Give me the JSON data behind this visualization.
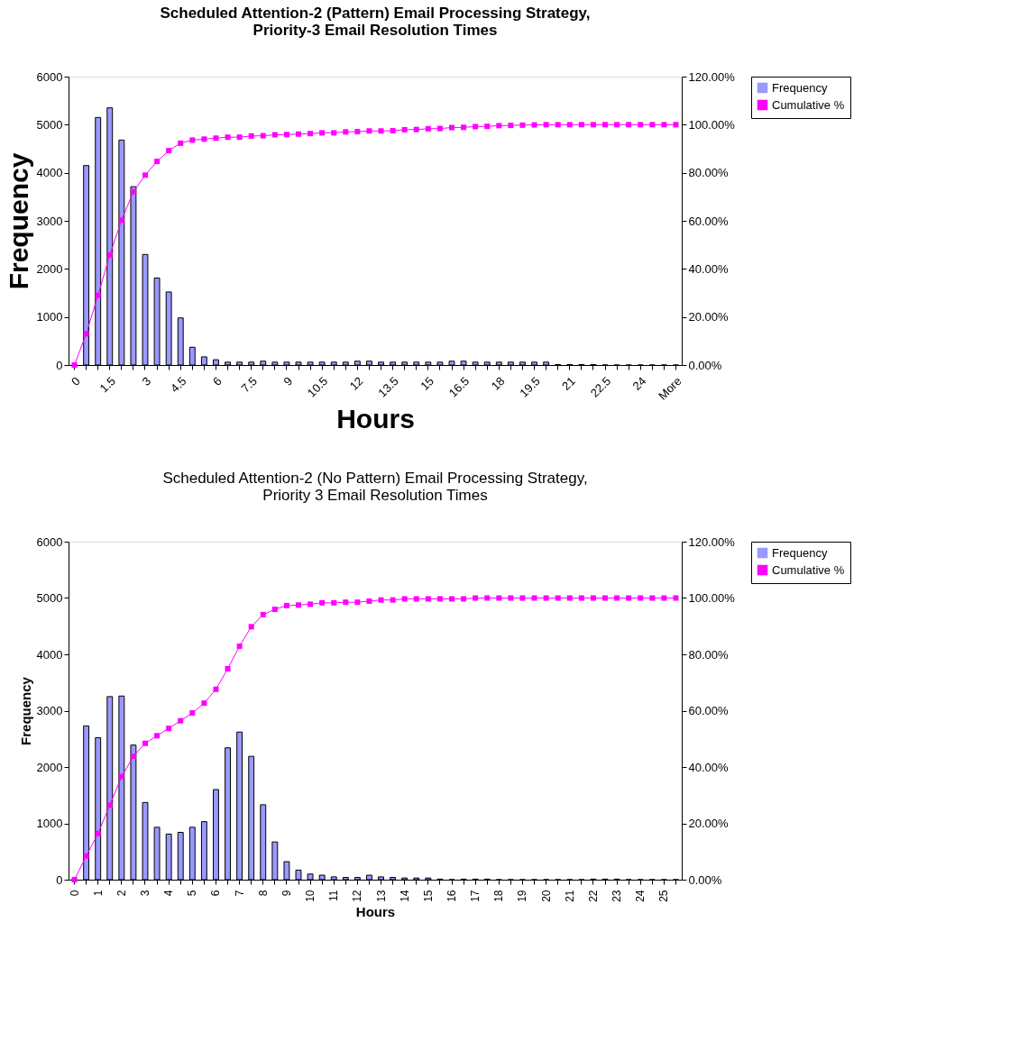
{
  "chart_data": [
    {
      "type": "bar",
      "title": "Scheduled Attention-2 (Pattern) Email Processing Strategy,\nPriority-3 Email Resolution Times",
      "xlabel": "Hours",
      "ylabel": "Frequency",
      "categories": [
        "0",
        null,
        null,
        "1.5",
        null,
        null,
        "3",
        null,
        null,
        "4.5",
        null,
        null,
        "6",
        null,
        null,
        "7.5",
        null,
        null,
        "9",
        null,
        null,
        "10.5",
        null,
        null,
        "12",
        null,
        null,
        "13.5",
        null,
        null,
        "15",
        null,
        null,
        "16.5",
        null,
        null,
        "18",
        null,
        null,
        "19.5",
        null,
        null,
        "21",
        null,
        null,
        "22.5",
        null,
        null,
        "24",
        null,
        null,
        "More"
      ],
      "series": [
        {
          "name": "Frequency",
          "color": "#9999ff",
          "values": [
            0,
            4150,
            5150,
            5350,
            4680,
            3710,
            2300,
            1810,
            1520,
            980,
            370,
            170,
            110,
            60,
            60,
            60,
            80,
            60,
            60,
            60,
            60,
            60,
            60,
            60,
            80,
            80,
            60,
            60,
            60,
            60,
            60,
            60,
            80,
            80,
            60,
            60,
            60,
            60,
            60,
            60,
            60,
            10,
            10,
            10,
            10,
            0,
            0,
            0,
            0,
            0,
            0,
            0
          ]
        },
        {
          "name": "Cumulative %",
          "type": "line",
          "axis": "y2",
          "color": "#ff00ff",
          "values": [
            0,
            13.0,
            29.0,
            45.8,
            60.3,
            72.1,
            79.0,
            84.7,
            89.2,
            92.3,
            93.6,
            94.0,
            94.4,
            94.8,
            94.8,
            95.3,
            95.4,
            95.8,
            95.9,
            96.1,
            96.3,
            96.6,
            96.6,
            97.0,
            97.1,
            97.4,
            97.4,
            97.5,
            97.9,
            98.0,
            98.3,
            98.4,
            98.8,
            98.9,
            99.2,
            99.3,
            99.6,
            99.7,
            99.8,
            99.9,
            100,
            100,
            100,
            100,
            100,
            100,
            100,
            100,
            100,
            100,
            100,
            100
          ]
        }
      ],
      "ylim": [
        0,
        6000
      ],
      "yticks": [
        0,
        1000,
        2000,
        3000,
        4000,
        5000,
        6000
      ],
      "y2lim": [
        0,
        120
      ],
      "y2ticks": [
        {
          "value": 0,
          "label": "0.00%"
        },
        {
          "value": 20,
          "label": "20.00%"
        },
        {
          "value": 40,
          "label": "40.00%"
        },
        {
          "value": 60,
          "label": "60.00%"
        },
        {
          "value": 80,
          "label": "80.00%"
        },
        {
          "value": 100,
          "label": "100.00%"
        },
        {
          "value": 120,
          "label": "120.00%"
        }
      ],
      "legend": "right",
      "marker": "square",
      "line_style": "solid"
    },
    {
      "type": "bar",
      "title": "Scheduled Attention-2 (No Pattern) Email Processing Strategy,\nPriority 3 Email Resolution Times",
      "xlabel": "Hours",
      "ylabel": "Frequency",
      "categories": [
        "0",
        null,
        "1",
        null,
        "2",
        null,
        "3",
        null,
        "4",
        null,
        "5",
        null,
        "6",
        null,
        "7",
        null,
        "8",
        null,
        "9",
        null,
        "10",
        null,
        "11",
        null,
        "12",
        null,
        "13",
        null,
        "14",
        null,
        "15",
        null,
        "16",
        null,
        "17",
        null,
        "18",
        null,
        "19",
        null,
        "20",
        null,
        "21",
        null,
        "22",
        null,
        "23",
        null,
        "24",
        null,
        "25",
        null
      ],
      "series": [
        {
          "name": "Frequency",
          "color": "#9999ff",
          "values": [
            0,
            2730,
            2520,
            3250,
            3260,
            2390,
            1370,
            930,
            810,
            840,
            930,
            1030,
            1600,
            2340,
            2620,
            2190,
            1330,
            670,
            320,
            170,
            100,
            80,
            50,
            40,
            40,
            80,
            50,
            40,
            30,
            30,
            30,
            10,
            0,
            10,
            10,
            10,
            0,
            0,
            0,
            0,
            0,
            0,
            0,
            0,
            10,
            10,
            10,
            0,
            0,
            0,
            0,
            0
          ]
        },
        {
          "name": "Cumulative %",
          "type": "line",
          "axis": "y2",
          "color": "#ff00ff",
          "values": [
            0,
            8.4,
            16.4,
            26.5,
            36.6,
            43.8,
            48.4,
            51.1,
            53.7,
            56.4,
            59.2,
            62.7,
            67.6,
            74.9,
            82.9,
            89.8,
            94.1,
            96.0,
            97.3,
            97.5,
            97.8,
            98.3,
            98.3,
            98.5,
            98.5,
            98.9,
            99.3,
            99.3,
            99.7,
            99.7,
            99.7,
            99.7,
            99.7,
            99.7,
            100,
            100,
            100,
            100,
            100,
            100,
            100,
            100,
            100,
            100,
            100,
            100,
            100,
            100,
            100,
            100,
            100,
            100
          ]
        }
      ],
      "ylim": [
        0,
        6000
      ],
      "yticks": [
        0,
        1000,
        2000,
        3000,
        4000,
        5000,
        6000
      ],
      "y2lim": [
        0,
        120
      ],
      "y2ticks": [
        {
          "value": 0,
          "label": "0.00%"
        },
        {
          "value": 20,
          "label": "20.00%"
        },
        {
          "value": 40,
          "label": "40.00%"
        },
        {
          "value": 60,
          "label": "60.00%"
        },
        {
          "value": 80,
          "label": "80.00%"
        },
        {
          "value": 100,
          "label": "100.00%"
        },
        {
          "value": 120,
          "label": "120.00%"
        }
      ],
      "legend": "right",
      "marker": "square",
      "line_style": "solid"
    }
  ]
}
